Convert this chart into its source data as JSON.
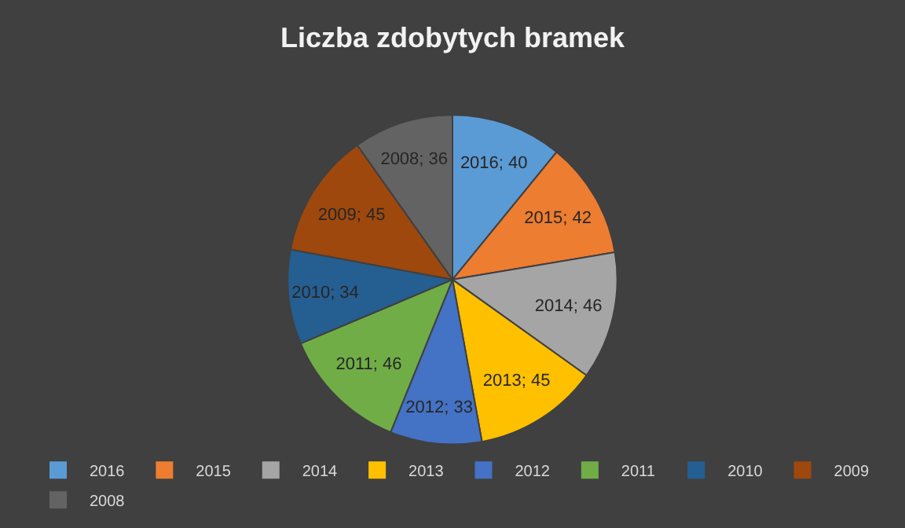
{
  "chart_data": {
    "type": "pie",
    "title": "Liczba zdobytych bramek",
    "categories": [
      "2016",
      "2015",
      "2014",
      "2013",
      "2012",
      "2011",
      "2010",
      "2009",
      "2008"
    ],
    "values": [
      40,
      42,
      46,
      45,
      33,
      46,
      34,
      45,
      36
    ],
    "value_labels": [
      "2016; 40",
      "2015; 42",
      "2014; 46",
      "2013; 45",
      "2012; 33",
      "2011; 46",
      "2010; 34",
      "2009; 45",
      "2008; 36"
    ],
    "colors": [
      "#5b9bd5",
      "#ed7d31",
      "#a5a5a5",
      "#ffc000",
      "#4472c4",
      "#70ad47",
      "#255e91",
      "#9e480e",
      "#636363"
    ],
    "legend": "bottom"
  }
}
